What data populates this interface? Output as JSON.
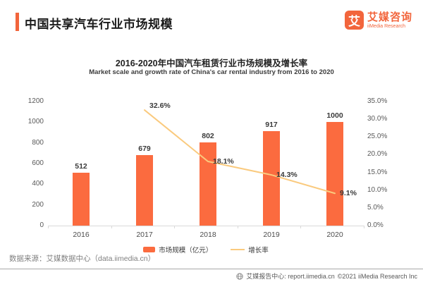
{
  "header": {
    "title": "中国共享汽车行业市场规模",
    "logo": {
      "mark": "艾",
      "name_cn": "艾媒咨询",
      "name_en": "iiMedia Research"
    }
  },
  "chart": {
    "title": "2016-2020年中国汽车租赁行业市场规模及增长率",
    "subtitle": "Market scale and growth rate of China's car rental industry from 2016 to 2020",
    "legend": [
      {
        "label": "市场规模（亿元）"
      },
      {
        "label": "增长率"
      }
    ]
  },
  "chart_data": {
    "type": "bar",
    "categories": [
      "2016",
      "2017",
      "2018",
      "2019",
      "2020"
    ],
    "series": [
      {
        "name": "市场规模（亿元）",
        "type": "bar",
        "axis": "left",
        "values": [
          512,
          679,
          802,
          917,
          1000
        ],
        "color": "#FB6B3F"
      },
      {
        "name": "增长率",
        "type": "line",
        "axis": "right",
        "values": [
          null,
          32.6,
          18.1,
          14.3,
          9.1
        ],
        "labels": [
          null,
          "32.6%",
          "18.1%",
          "14.3%",
          "9.1%"
        ],
        "color": "#FACA7E"
      }
    ],
    "title": "2016-2020年中国汽车租赁行业市场规模及增长率",
    "xlabel": "",
    "ylabel": "",
    "left_axis": {
      "lim": [
        0,
        1200
      ],
      "ticks": [
        "0",
        "200",
        "400",
        "600",
        "800",
        "1000",
        "1200"
      ]
    },
    "right_axis": {
      "lim": [
        0,
        35
      ],
      "ticks": [
        "0.0%",
        "5.0%",
        "10.0%",
        "15.0%",
        "20.0%",
        "25.0%",
        "30.0%",
        "35.0%"
      ]
    },
    "grid": false,
    "legend_position": "bottom"
  },
  "source": "数据来源：艾媒数据中心（data.iimedia.cn）",
  "footer": {
    "text": "艾媒报告中心: report.iimedia.cn",
    "copyright": "©2021  iiMedia Research  Inc"
  }
}
